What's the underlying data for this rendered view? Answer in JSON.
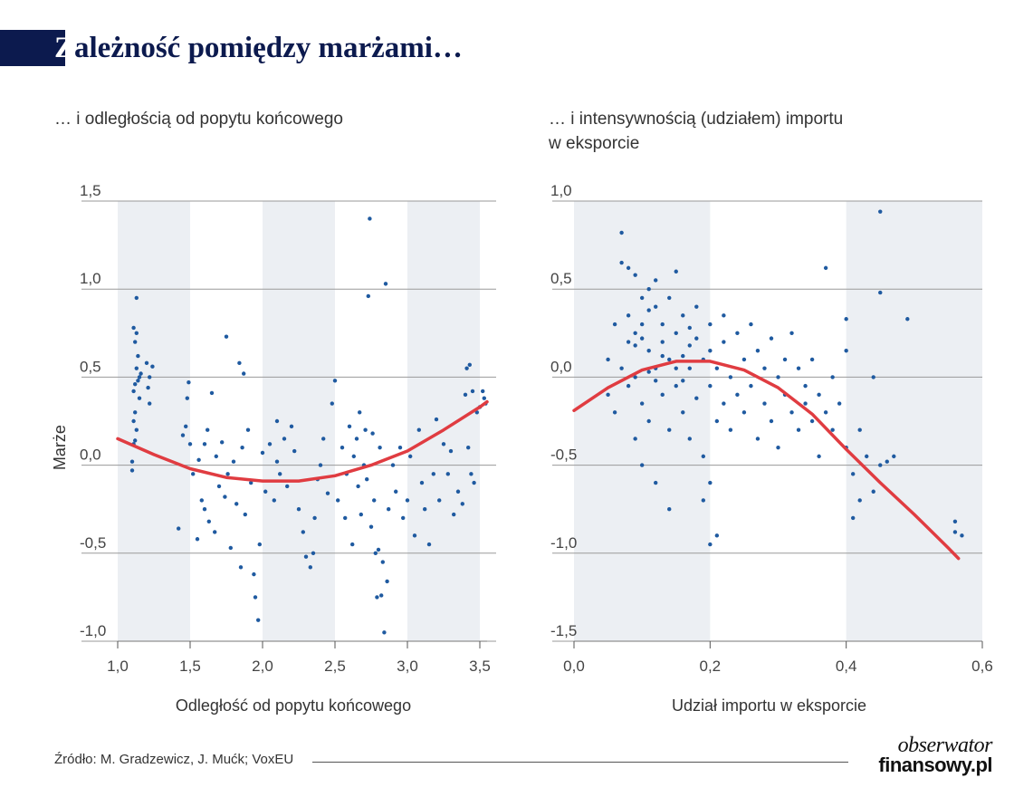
{
  "title": "Zależność pomiędzy marżami…",
  "title_first": "Z",
  "title_rest": "ależność pomiędzy marżami…",
  "source": "Źródło: M. Gradzewicz, J. Mućk; VoxEU",
  "logo": {
    "line1": "obserwator",
    "line2": "finansowy.pl"
  },
  "colors": {
    "points": "#1f5aa0",
    "fit": "#e03c41",
    "band": "#eceff3",
    "grid": "#9a9a9a",
    "title": "#0c1a4e"
  },
  "chart_data": [
    {
      "type": "scatter",
      "title": "… i odległością od popytu końcowego",
      "xlabel": "Odległość od popytu końcowego",
      "ylabel": "Marże",
      "xlim": [
        1.0,
        3.55
      ],
      "ylim": [
        -1.0,
        1.5
      ],
      "xticks": [
        1.0,
        1.5,
        2.0,
        2.5,
        3.0,
        3.5
      ],
      "xtick_labels": [
        "1,0",
        "1,5",
        "2,0",
        "2,5",
        "3,0",
        "3,5"
      ],
      "yticks": [
        -1.0,
        -0.5,
        0.0,
        0.5,
        1.0,
        1.5
      ],
      "ytick_labels": [
        "-1,0",
        "-0,5",
        "0,0",
        "0,5",
        "1,0",
        "1,5"
      ],
      "shaded_bands": [
        [
          1.0,
          1.5
        ],
        [
          2.0,
          2.5
        ],
        [
          3.0,
          3.5
        ]
      ],
      "fit_line": {
        "x": [
          1.0,
          1.25,
          1.5,
          1.75,
          2.0,
          2.25,
          2.5,
          2.75,
          3.0,
          3.25,
          3.5,
          3.55
        ],
        "y": [
          0.15,
          0.06,
          -0.02,
          -0.07,
          -0.09,
          -0.09,
          -0.06,
          0.0,
          0.08,
          0.2,
          0.33,
          0.36
        ]
      },
      "points": [
        [
          1.1,
          -0.03
        ],
        [
          1.1,
          0.02
        ],
        [
          1.11,
          0.12
        ],
        [
          1.11,
          0.25
        ],
        [
          1.11,
          0.42
        ],
        [
          1.11,
          0.78
        ],
        [
          1.12,
          0.14
        ],
        [
          1.12,
          0.3
        ],
        [
          1.12,
          0.46
        ],
        [
          1.12,
          0.7
        ],
        [
          1.13,
          0.2
        ],
        [
          1.13,
          0.55
        ],
        [
          1.13,
          0.75
        ],
        [
          1.13,
          0.95
        ],
        [
          1.14,
          0.62
        ],
        [
          1.14,
          0.48
        ],
        [
          1.15,
          0.5
        ],
        [
          1.16,
          0.52
        ],
        [
          1.2,
          0.58
        ],
        [
          1.21,
          0.44
        ],
        [
          1.22,
          0.35
        ],
        [
          1.24,
          0.56
        ],
        [
          1.22,
          0.5
        ],
        [
          1.15,
          0.38
        ],
        [
          1.42,
          -0.36
        ],
        [
          1.45,
          0.17
        ],
        [
          1.47,
          0.22
        ],
        [
          1.48,
          0.38
        ],
        [
          1.49,
          0.47
        ],
        [
          1.5,
          0.12
        ],
        [
          1.52,
          -0.05
        ],
        [
          1.55,
          -0.42
        ],
        [
          1.56,
          0.03
        ],
        [
          1.58,
          -0.2
        ],
        [
          1.6,
          0.12
        ],
        [
          1.6,
          -0.25
        ],
        [
          1.62,
          0.2
        ],
        [
          1.63,
          -0.32
        ],
        [
          1.65,
          0.41
        ],
        [
          1.67,
          -0.38
        ],
        [
          1.68,
          0.05
        ],
        [
          1.7,
          -0.12
        ],
        [
          1.72,
          0.13
        ],
        [
          1.74,
          -0.18
        ],
        [
          1.75,
          0.73
        ],
        [
          1.76,
          -0.05
        ],
        [
          1.78,
          -0.47
        ],
        [
          1.8,
          0.02
        ],
        [
          1.82,
          -0.22
        ],
        [
          1.84,
          0.58
        ],
        [
          1.85,
          -0.58
        ],
        [
          1.86,
          0.1
        ],
        [
          1.87,
          0.52
        ],
        [
          1.88,
          -0.28
        ],
        [
          1.9,
          0.2
        ],
        [
          1.92,
          -0.1
        ],
        [
          1.94,
          -0.62
        ],
        [
          1.95,
          -0.75
        ],
        [
          1.97,
          -0.88
        ],
        [
          1.98,
          -0.45
        ],
        [
          2.0,
          0.07
        ],
        [
          2.02,
          -0.15
        ],
        [
          2.05,
          0.12
        ],
        [
          2.08,
          -0.2
        ],
        [
          2.1,
          0.25
        ],
        [
          2.1,
          0.02
        ],
        [
          2.12,
          -0.05
        ],
        [
          2.15,
          0.15
        ],
        [
          2.17,
          -0.12
        ],
        [
          2.2,
          0.22
        ],
        [
          2.22,
          0.08
        ],
        [
          2.25,
          -0.25
        ],
        [
          2.28,
          -0.38
        ],
        [
          2.3,
          -0.52
        ],
        [
          2.33,
          -0.58
        ],
        [
          2.35,
          -0.5
        ],
        [
          2.36,
          -0.3
        ],
        [
          2.38,
          -0.08
        ],
        [
          2.4,
          0.0
        ],
        [
          2.42,
          0.15
        ],
        [
          2.45,
          -0.16
        ],
        [
          2.48,
          0.35
        ],
        [
          2.5,
          0.48
        ],
        [
          2.52,
          -0.2
        ],
        [
          2.55,
          0.1
        ],
        [
          2.57,
          -0.3
        ],
        [
          2.58,
          -0.05
        ],
        [
          2.6,
          0.22
        ],
        [
          2.62,
          -0.45
        ],
        [
          2.63,
          0.05
        ],
        [
          2.65,
          0.15
        ],
        [
          2.66,
          -0.12
        ],
        [
          2.67,
          0.3
        ],
        [
          2.68,
          -0.28
        ],
        [
          2.7,
          0.0
        ],
        [
          2.71,
          0.2
        ],
        [
          2.72,
          -0.08
        ],
        [
          2.73,
          0.96
        ],
        [
          2.74,
          1.4
        ],
        [
          2.75,
          -0.35
        ],
        [
          2.76,
          0.18
        ],
        [
          2.77,
          -0.2
        ],
        [
          2.78,
          -0.5
        ],
        [
          2.79,
          -0.75
        ],
        [
          2.8,
          -0.48
        ],
        [
          2.81,
          0.1
        ],
        [
          2.82,
          -0.74
        ],
        [
          2.83,
          -0.55
        ],
        [
          2.84,
          -0.95
        ],
        [
          2.85,
          1.03
        ],
        [
          2.86,
          -0.66
        ],
        [
          2.87,
          -0.25
        ],
        [
          2.9,
          0.0
        ],
        [
          2.92,
          -0.15
        ],
        [
          2.95,
          0.1
        ],
        [
          2.97,
          -0.3
        ],
        [
          3.0,
          -0.2
        ],
        [
          3.02,
          0.05
        ],
        [
          3.05,
          -0.4
        ],
        [
          3.08,
          0.2
        ],
        [
          3.1,
          -0.1
        ],
        [
          3.12,
          -0.25
        ],
        [
          3.15,
          -0.45
        ],
        [
          3.18,
          -0.05
        ],
        [
          3.2,
          0.26
        ],
        [
          3.22,
          -0.2
        ],
        [
          3.25,
          0.12
        ],
        [
          3.28,
          -0.05
        ],
        [
          3.3,
          0.08
        ],
        [
          3.32,
          -0.28
        ],
        [
          3.35,
          -0.15
        ],
        [
          3.38,
          -0.22
        ],
        [
          3.4,
          0.4
        ],
        [
          3.41,
          0.55
        ],
        [
          3.42,
          0.1
        ],
        [
          3.43,
          0.57
        ],
        [
          3.45,
          0.42
        ],
        [
          3.46,
          -0.1
        ],
        [
          3.48,
          0.3
        ],
        [
          3.5,
          0.33
        ],
        [
          3.52,
          0.42
        ],
        [
          3.53,
          0.38
        ],
        [
          3.54,
          0.35
        ],
        [
          3.44,
          -0.05
        ]
      ]
    },
    {
      "type": "scatter",
      "title": "… i intensywnością (udziałem) importu\nw eksporcie",
      "xlabel": "Udział importu w eksporcie",
      "ylabel": "",
      "xlim": [
        0.0,
        0.6
      ],
      "ylim": [
        -1.5,
        1.0
      ],
      "xticks": [
        0.0,
        0.2,
        0.4,
        0.6
      ],
      "xtick_labels": [
        "0,0",
        "0,2",
        "0,4",
        "0,6"
      ],
      "yticks": [
        -1.5,
        -1.0,
        -0.5,
        0.0,
        0.5,
        1.0
      ],
      "ytick_labels": [
        "-1,5",
        "-1,0",
        "-0,5",
        "0,0",
        "0,5",
        "1,0"
      ],
      "shaded_bands": [
        [
          0.0,
          0.2
        ],
        [
          0.4,
          0.6
        ]
      ],
      "fit_line": {
        "x": [
          0.0,
          0.05,
          0.1,
          0.15,
          0.2,
          0.25,
          0.3,
          0.35,
          0.4,
          0.45,
          0.5,
          0.55,
          0.565
        ],
        "y": [
          -0.19,
          -0.06,
          0.04,
          0.09,
          0.09,
          0.04,
          -0.06,
          -0.21,
          -0.41,
          -0.6,
          -0.78,
          -0.97,
          -1.03
        ]
      },
      "points": [
        [
          0.05,
          -0.1
        ],
        [
          0.05,
          0.1
        ],
        [
          0.06,
          0.3
        ],
        [
          0.06,
          -0.2
        ],
        [
          0.07,
          0.65
        ],
        [
          0.07,
          0.05
        ],
        [
          0.07,
          0.82
        ],
        [
          0.08,
          0.62
        ],
        [
          0.08,
          0.2
        ],
        [
          0.08,
          -0.05
        ],
        [
          0.08,
          0.35
        ],
        [
          0.09,
          0.58
        ],
        [
          0.09,
          0.25
        ],
        [
          0.09,
          -0.35
        ],
        [
          0.09,
          0.0
        ],
        [
          0.1,
          0.45
        ],
        [
          0.1,
          0.3
        ],
        [
          0.1,
          -0.15
        ],
        [
          0.1,
          -0.5
        ],
        [
          0.11,
          0.5
        ],
        [
          0.11,
          0.15
        ],
        [
          0.11,
          0.38
        ],
        [
          0.11,
          -0.25
        ],
        [
          0.12,
          0.4
        ],
        [
          0.12,
          0.05
        ],
        [
          0.12,
          -0.6
        ],
        [
          0.12,
          0.55
        ],
        [
          0.13,
          0.3
        ],
        [
          0.13,
          -0.1
        ],
        [
          0.13,
          0.2
        ],
        [
          0.14,
          0.45
        ],
        [
          0.14,
          -0.3
        ],
        [
          0.14,
          0.1
        ],
        [
          0.15,
          0.25
        ],
        [
          0.15,
          -0.05
        ],
        [
          0.15,
          0.6
        ],
        [
          0.16,
          0.35
        ],
        [
          0.16,
          -0.2
        ],
        [
          0.16,
          0.12
        ],
        [
          0.17,
          0.28
        ],
        [
          0.17,
          -0.35
        ],
        [
          0.17,
          0.05
        ],
        [
          0.18,
          0.22
        ],
        [
          0.18,
          -0.12
        ],
        [
          0.18,
          0.4
        ],
        [
          0.19,
          -0.45
        ],
        [
          0.19,
          0.1
        ],
        [
          0.19,
          -0.7
        ],
        [
          0.2,
          0.15
        ],
        [
          0.2,
          -0.05
        ],
        [
          0.2,
          -0.6
        ],
        [
          0.2,
          0.3
        ],
        [
          0.21,
          -0.25
        ],
        [
          0.21,
          0.05
        ],
        [
          0.21,
          -0.9
        ],
        [
          0.22,
          0.2
        ],
        [
          0.22,
          -0.15
        ],
        [
          0.22,
          0.35
        ],
        [
          0.23,
          0.0
        ],
        [
          0.23,
          -0.3
        ],
        [
          0.24,
          0.25
        ],
        [
          0.24,
          -0.1
        ],
        [
          0.25,
          0.1
        ],
        [
          0.25,
          -0.2
        ],
        [
          0.26,
          0.3
        ],
        [
          0.26,
          -0.05
        ],
        [
          0.27,
          -0.35
        ],
        [
          0.27,
          0.15
        ],
        [
          0.28,
          0.05
        ],
        [
          0.28,
          -0.15
        ],
        [
          0.29,
          0.22
        ],
        [
          0.29,
          -0.25
        ],
        [
          0.3,
          0.0
        ],
        [
          0.3,
          -0.4
        ],
        [
          0.31,
          0.1
        ],
        [
          0.31,
          -0.1
        ],
        [
          0.32,
          0.25
        ],
        [
          0.32,
          -0.2
        ],
        [
          0.33,
          -0.3
        ],
        [
          0.33,
          0.05
        ],
        [
          0.34,
          -0.05
        ],
        [
          0.34,
          -0.15
        ],
        [
          0.35,
          0.1
        ],
        [
          0.35,
          -0.25
        ],
        [
          0.36,
          -0.45
        ],
        [
          0.36,
          -0.1
        ],
        [
          0.37,
          0.62
        ],
        [
          0.37,
          -0.2
        ],
        [
          0.38,
          -0.3
        ],
        [
          0.38,
          0.0
        ],
        [
          0.39,
          -0.15
        ],
        [
          0.4,
          0.15
        ],
        [
          0.4,
          -0.4
        ],
        [
          0.4,
          0.33
        ],
        [
          0.41,
          -0.8
        ],
        [
          0.41,
          -0.55
        ],
        [
          0.42,
          -0.3
        ],
        [
          0.43,
          -0.45
        ],
        [
          0.44,
          0.0
        ],
        [
          0.44,
          -0.65
        ],
        [
          0.45,
          -0.5
        ],
        [
          0.45,
          0.94
        ],
        [
          0.45,
          0.48
        ],
        [
          0.46,
          -0.48
        ],
        [
          0.47,
          -0.45
        ],
        [
          0.49,
          0.33
        ],
        [
          0.56,
          -0.88
        ],
        [
          0.56,
          -0.82
        ],
        [
          0.57,
          -0.9
        ],
        [
          0.42,
          -0.7
        ],
        [
          0.14,
          -0.75
        ],
        [
          0.2,
          -0.95
        ],
        [
          0.09,
          0.18
        ],
        [
          0.1,
          0.22
        ],
        [
          0.13,
          0.12
        ],
        [
          0.15,
          0.05
        ],
        [
          0.16,
          -0.02
        ],
        [
          0.17,
          0.18
        ],
        [
          0.12,
          -0.02
        ],
        [
          0.11,
          0.03
        ]
      ]
    }
  ]
}
